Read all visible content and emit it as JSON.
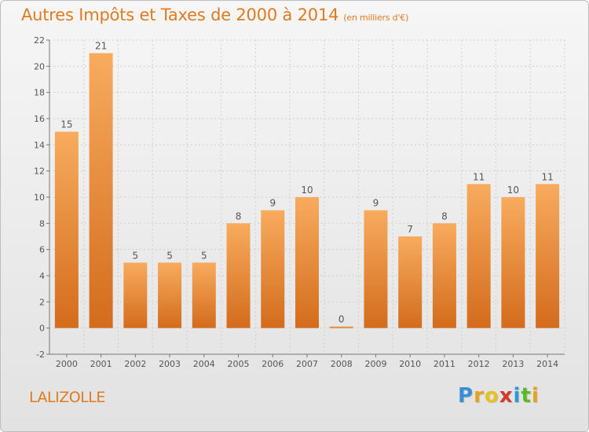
{
  "title": "Autres Impôts et Taxes de 2000 à 2014",
  "subtitle": "(en milliers d'€)",
  "commune": "LALIZOLLE",
  "brand": {
    "letters": [
      "P",
      "r",
      "o",
      "x",
      "i",
      "t",
      "i"
    ],
    "colors": [
      "#3a8ed6",
      "#e8a21a",
      "#e8c21a",
      "#d43a2a",
      "#2a9ad4",
      "#5ab82a",
      "#e8a21a"
    ]
  },
  "colors": {
    "bar_top": "#f8ab5e",
    "bar_bottom": "#d36c1c",
    "text": "#555555",
    "title": "#e07a1f"
  },
  "chart_data": {
    "type": "bar",
    "title": "Autres Impôts et Taxes de 2000 à 2014",
    "subtitle": "(en milliers d'€)",
    "categories": [
      "2000",
      "2001",
      "2002",
      "2003",
      "2004",
      "2005",
      "2006",
      "2007",
      "2008",
      "2009",
      "2010",
      "2011",
      "2012",
      "2013",
      "2014"
    ],
    "values": [
      15,
      21,
      5,
      5,
      5,
      8,
      9,
      10,
      0,
      9,
      7,
      8,
      11,
      10,
      11
    ],
    "ylim": [
      -2,
      22
    ],
    "yticks": [
      -2,
      0,
      2,
      4,
      6,
      8,
      10,
      12,
      14,
      16,
      18,
      20,
      22
    ],
    "grid": true,
    "xlabel": "",
    "ylabel": ""
  }
}
